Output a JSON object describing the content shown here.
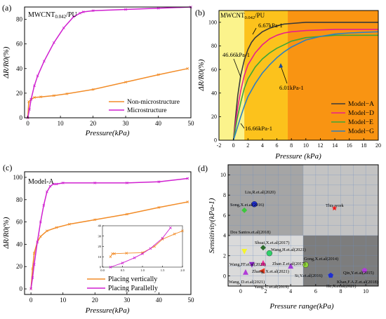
{
  "panels": [
    {
      "label": "(a)"
    },
    {
      "label": "(b)"
    },
    {
      "label": "(c)"
    },
    {
      "label": "(d)"
    }
  ],
  "chart_data": [
    {
      "type": "line",
      "panel": "(a)",
      "title": "MWCNT0.042/PU",
      "title_main": "MWCNT",
      "title_sub": "0.042",
      "title_tail": "/PU",
      "xlabel": "Pressure(kPa)",
      "ylabel": "ΔR/R0(%)",
      "xlim": [
        -1,
        50
      ],
      "ylim": [
        0,
        90
      ],
      "xticks": [
        0,
        10,
        20,
        30,
        40,
        50
      ],
      "yticks": [
        0,
        20,
        40,
        60,
        80
      ],
      "grid": false,
      "legend_position": "bottom-right",
      "series": [
        {
          "name": "Non-microstructure",
          "color": "#f28c28",
          "x": [
            0,
            0.3,
            1,
            2,
            4,
            8,
            12,
            20,
            30,
            40,
            49
          ],
          "y": [
            0,
            13,
            15,
            16.5,
            17,
            18,
            19.5,
            23,
            29,
            35,
            40
          ]
        },
        {
          "name": "Microstructure",
          "color": "#d020d0",
          "x": [
            0,
            0.5,
            1,
            2,
            3,
            5,
            8,
            11,
            14,
            16,
            17,
            20,
            30,
            40,
            50
          ],
          "y": [
            0,
            7,
            15,
            26,
            34,
            46,
            61,
            73,
            82,
            85,
            86,
            87,
            88,
            89,
            90
          ]
        }
      ]
    },
    {
      "type": "line",
      "panel": "(b)",
      "title": "MWCNT0.042/PU",
      "title_main": "MWCNT",
      "title_sub": "0.042",
      "title_tail": "/PU",
      "xlabel": "Pressure (kPa)",
      "ylabel": "ΔR/R0(%)",
      "xlim": [
        -2,
        20
      ],
      "ylim": [
        0,
        110
      ],
      "xticks": [
        -2,
        0,
        2,
        4,
        6,
        8,
        10,
        12,
        14,
        16,
        18,
        20
      ],
      "yticks": [
        0,
        20,
        40,
        60,
        80,
        100
      ],
      "grid": false,
      "legend_position": "bottom-right",
      "bands": [
        {
          "from": -2,
          "to": 1.5,
          "color": "#fbf38c"
        },
        {
          "from": 1.5,
          "to": 7.5,
          "color": "#fcc21c"
        },
        {
          "from": 7.5,
          "to": 20,
          "color": "#f99412"
        }
      ],
      "annotations": [
        "6.67kPa-1",
        "46.66kPa-1",
        "6.01kPa-1",
        "16.66kPa-1"
      ],
      "series": [
        {
          "name": "Model−A",
          "color": "#3a3a3a",
          "x": [
            0,
            0.3,
            0.6,
            1,
            1.5,
            2,
            2.5,
            3,
            4,
            5,
            6,
            7,
            8,
            10,
            14,
            20
          ],
          "y": [
            0,
            20,
            38,
            55,
            68,
            77,
            83,
            87,
            92,
            95,
            97,
            98.5,
            99,
            100,
            100,
            100
          ]
        },
        {
          "name": "Model−D",
          "color": "#e81f8a",
          "x": [
            0,
            0.3,
            0.6,
            1,
            1.5,
            2,
            3,
            4,
            5,
            6,
            7,
            8,
            10,
            14,
            20
          ],
          "y": [
            0,
            15,
            28,
            42,
            55,
            64,
            74,
            81,
            86,
            89,
            91,
            92,
            93,
            94,
            94
          ]
        },
        {
          "name": "Model−E",
          "color": "#3da638",
          "x": [
            0,
            0.5,
            1,
            1.5,
            2,
            3,
            4,
            5,
            6,
            7,
            8,
            10,
            12,
            14,
            20
          ],
          "y": [
            0,
            18,
            32,
            44,
            52,
            62,
            69,
            74,
            78,
            81,
            84,
            87,
            88,
            89,
            89
          ]
        },
        {
          "name": "Model−G",
          "color": "#2f7fc0",
          "x": [
            0,
            0.5,
            1,
            1.5,
            2,
            3,
            4,
            5,
            6,
            7,
            8,
            10,
            12,
            14,
            16,
            20
          ],
          "y": [
            0,
            10,
            20,
            29,
            37,
            48,
            57,
            64,
            70,
            75,
            79,
            85,
            88,
            90,
            91,
            92
          ]
        }
      ]
    },
    {
      "type": "line",
      "panel": "(c)",
      "title": "Model-A",
      "xlabel": "Pressure(kPa)",
      "ylabel": "ΔR/R0(%)",
      "xlim": [
        -2,
        50
      ],
      "ylim": [
        -5,
        105
      ],
      "xticks": [
        0,
        10,
        20,
        30,
        40,
        50
      ],
      "yticks": [
        0,
        20,
        40,
        60,
        80,
        100
      ],
      "grid": false,
      "legend_position": "bottom-right",
      "series": [
        {
          "name": "Placing vertically",
          "color": "#f28c28",
          "x": [
            0,
            0.5,
            1,
            2,
            3,
            5,
            8,
            12,
            20,
            30,
            40,
            49
          ],
          "y": [
            0,
            18,
            32,
            42,
            47,
            52,
            55,
            58,
            62,
            67,
            73,
            78
          ]
        },
        {
          "name": "Placing Parallelly",
          "color": "#d020d0",
          "x": [
            0,
            0.5,
            1,
            2,
            3,
            4,
            5,
            6,
            7,
            8,
            10,
            20,
            30,
            40,
            49
          ],
          "y": [
            0,
            10,
            22,
            42,
            60,
            75,
            87,
            92,
            94,
            94,
            95,
            95,
            95,
            96,
            99
          ]
        }
      ],
      "inset": {
        "xlim": [
          0,
          2
        ],
        "ylim": [
          0,
          40
        ],
        "xticks": [
          0,
          0.5,
          1,
          1.5,
          2
        ],
        "yticks": [
          0,
          10,
          20,
          30,
          40
        ],
        "xtick_labels": [
          "0.0",
          "0.5",
          "1.0",
          "1.5",
          "2.0"
        ],
        "ytick_labels": [
          "0",
          "10",
          "20",
          "30",
          "40"
        ],
        "series": [
          {
            "name": "Placing vertically",
            "color": "#f28c28",
            "x": [
              0.2,
              0.25,
              0.3,
              0.6,
              1.0,
              1.3,
              1.5,
              1.8,
              2.0
            ],
            "y": [
              10,
              13,
              13,
              13.5,
              14,
              20,
              27,
              32,
              35
            ]
          },
          {
            "name": "Placing Parallelly",
            "color": "#d020d0",
            "x": [
              0.2,
              0.5,
              0.8,
              1.0,
              1.2,
              1.5,
              1.7
            ],
            "y": [
              0,
              4,
              9,
              13,
              18,
              28,
              38
            ]
          }
        ]
      }
    },
    {
      "type": "scatter",
      "panel": "(d)",
      "xlabel": "Pressure range(kPa)",
      "ylabel": "Sensitivity(kPa-1)",
      "xlim": [
        -1,
        11
      ],
      "ylim": [
        -1,
        11
      ],
      "xticks": [
        0,
        2,
        4,
        6,
        8,
        10
      ],
      "yticks": [
        0,
        2,
        4,
        6,
        8,
        10
      ],
      "grid": true,
      "regions": [
        {
          "x": [
            -1,
            5
          ],
          "y": [
            4,
            11
          ],
          "color": "#a5a5a5"
        },
        {
          "x": [
            5,
            11
          ],
          "y": [
            4,
            11
          ],
          "color": "#c3c3c3"
        },
        {
          "x": [
            -1,
            5
          ],
          "y": [
            -1,
            4
          ],
          "color": "#dadada"
        },
        {
          "x": [
            5,
            11
          ],
          "y": [
            -1,
            4
          ],
          "color": "#7d7d7d"
        }
      ],
      "points": [
        {
          "label": "Liu,R.et.al(2020)",
          "x": 1.1,
          "y": 7.1,
          "color": "#1f2fd0",
          "marker": "circle"
        },
        {
          "label": "Song,X.et.al(2016)",
          "x": 0.3,
          "y": 6.5,
          "color": "#3cc83c",
          "marker": "diamond"
        },
        {
          "label": "This work",
          "x": 7.5,
          "y": 6.7,
          "color": "#ee1c1c",
          "marker": "star"
        },
        {
          "label": "Dos Santos.et.al(2018)",
          "x": 0.3,
          "y": 2.4,
          "color": "#f5f52a",
          "marker": "triangle-down"
        },
        {
          "label": "Shuai,X.et.al(2017)",
          "x": 1.8,
          "y": 2.8,
          "color": "#2b6b2b",
          "marker": "diamond"
        },
        {
          "label": "Wang,H.et.al(2021)",
          "x": 2.3,
          "y": 2.25,
          "color": "#2fd06a",
          "marker": "circle"
        },
        {
          "label": "Gong,X.et.al(2014)",
          "x": 5.2,
          "y": 1.1,
          "color": "#8fd43a",
          "marker": "circle"
        },
        {
          "label": "Wang,FF.et.al(2021)",
          "x": 0.9,
          "y": 1.1,
          "color": "#8a25c8",
          "marker": "triangle-down"
        },
        {
          "label": "Zhan Z.et.al(2017)",
          "x": 1.8,
          "y": 1.3,
          "color": "#ee2d9a",
          "marker": "triangle-up"
        },
        {
          "label": "Si,Y.et.al(2016)",
          "x": 4.0,
          "y": 1.0,
          "color": "#9e3cd8",
          "marker": "triangle-up"
        },
        {
          "label": "Zhang, X.et.al(2021)",
          "x": 1.7,
          "y": 0.5,
          "color": "#e63a1e",
          "marker": "triangle-left"
        },
        {
          "label": "Wang, D.et.al(2021)",
          "x": 0.4,
          "y": 0.4,
          "color": "#b03cd8",
          "marker": "triangle-up"
        },
        {
          "label": "Qin,Y.et.al(2015)",
          "x": 9.9,
          "y": 0.55,
          "color": "#b03cd8",
          "marker": "pentagon"
        },
        {
          "label": "Khan,F.A.Z.et.al(2018)",
          "x": 7.2,
          "y": 0.05,
          "color": "#1f2fd0",
          "marker": "pentagon"
        }
      ],
      "extra_labels": [
        "Yang, C.et.al(2019)",
        "He,X.et.al(2021)"
      ]
    }
  ]
}
